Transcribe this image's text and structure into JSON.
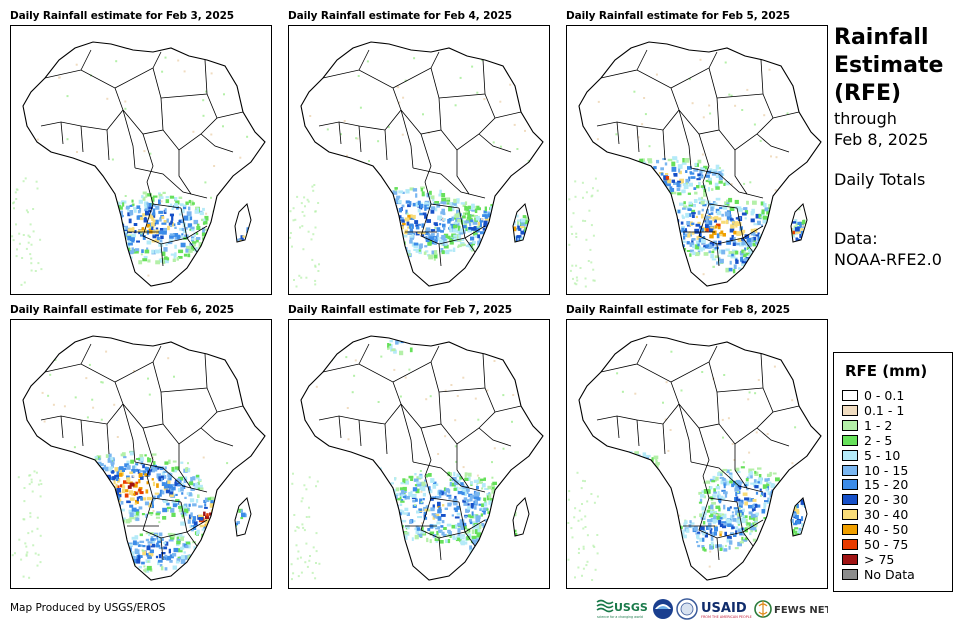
{
  "panels": [
    {
      "title": "Daily Rainfall estimate for Feb 3, 2025"
    },
    {
      "title": "Daily Rainfall estimate for Feb 4, 2025"
    },
    {
      "title": "Daily Rainfall estimate for Feb 5, 2025"
    },
    {
      "title": "Daily Rainfall estimate for Feb 6, 2025"
    },
    {
      "title": "Daily Rainfall estimate for Feb 7, 2025"
    },
    {
      "title": "Daily Rainfall estimate for Feb 8, 2025"
    }
  ],
  "heading": {
    "line1": "Rainfall",
    "line2": "Estimate",
    "line3": "(RFE)",
    "through": "through",
    "date": "Feb 8, 2025",
    "totals": "Daily Totals",
    "data_label": "Data:",
    "data_source": "NOAA-RFE2.0"
  },
  "legend": {
    "title": "RFE (mm)",
    "items": [
      {
        "label": "0 - 0.1",
        "color": "#ffffff"
      },
      {
        "label": "0.1 - 1",
        "color": "#f0dcc0"
      },
      {
        "label": "1 - 2",
        "color": "#b4f0a8"
      },
      {
        "label": "2 - 5",
        "color": "#66e05a"
      },
      {
        "label": "5 - 10",
        "color": "#b4eaf8"
      },
      {
        "label": "10 - 15",
        "color": "#7ab6f0"
      },
      {
        "label": "15 - 20",
        "color": "#3c8ce8"
      },
      {
        "label": "20 - 30",
        "color": "#1650c8"
      },
      {
        "label": "30 - 40",
        "color": "#f8dc78"
      },
      {
        "label": "40 - 50",
        "color": "#f0a000"
      },
      {
        "label": "50 - 75",
        "color": "#e83c00"
      },
      {
        "label": "> 75",
        "color": "#a01414"
      },
      {
        "label": "No Data",
        "color": "#8c8c8c"
      }
    ]
  },
  "credit": "Map Produced by USGS/EROS",
  "logos": {
    "usgs": "USGS",
    "usgs_tag": "science for a changing world",
    "usaid": "USAID",
    "usaid_tag": "FROM THE AMERICAN PEOPLE",
    "fews": "FEWS NET"
  }
}
